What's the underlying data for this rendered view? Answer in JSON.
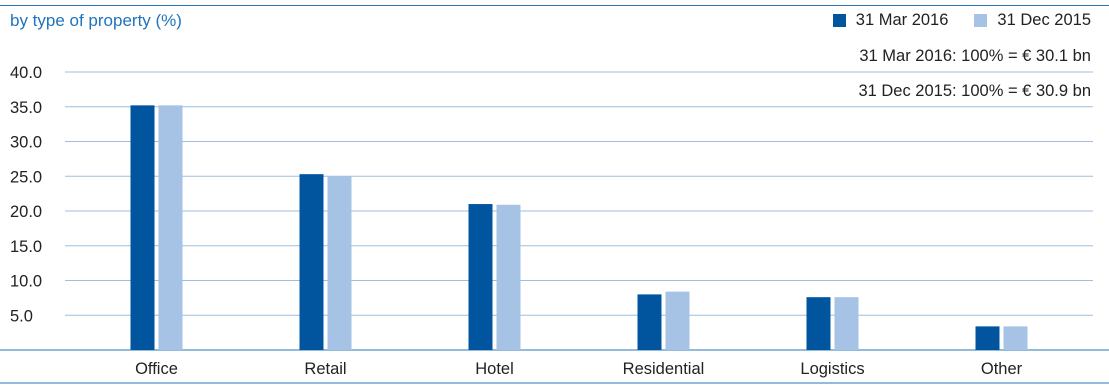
{
  "header": {
    "subtitle": "by type of property (%)"
  },
  "legend": {
    "items": [
      {
        "label": "31 Mar 2016",
        "color": "#00559e"
      },
      {
        "label": "31 Dec 2015",
        "color": "#a6c3e6"
      }
    ]
  },
  "notes": {
    "line1": "31 Mar 2016: 100% = € 30.1 bn",
    "line2": "31 Dec 2015: 100% = € 30.9 bn"
  },
  "chart_data": {
    "type": "bar",
    "title": "",
    "subtitle": "by type of property (%)",
    "xlabel": "",
    "ylabel": "",
    "ylim": [
      0,
      40
    ],
    "yticks": [
      "40.0",
      "35.0",
      "30.0",
      "25.0",
      "20.0",
      "15.0",
      "10.0",
      "5.0"
    ],
    "ytick_values": [
      40,
      35,
      30,
      25,
      20,
      15,
      10,
      5
    ],
    "grid": true,
    "legend_position": "top-right",
    "categories": [
      "Office",
      "Retail",
      "Hotel",
      "Residential",
      "Logistics",
      "Other"
    ],
    "series": [
      {
        "name": "31 Mar 2016",
        "color": "#00559e",
        "values": [
          35.2,
          25.3,
          21.0,
          8.0,
          7.6,
          3.4
        ]
      },
      {
        "name": "31 Dec 2015",
        "color": "#a6c3e6",
        "values": [
          35.2,
          25.0,
          20.9,
          8.4,
          7.6,
          3.4
        ]
      }
    ]
  }
}
